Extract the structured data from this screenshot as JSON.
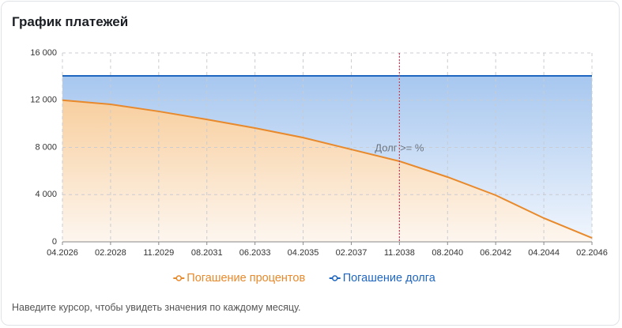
{
  "header": {
    "title": "График платежей"
  },
  "chart_data": {
    "type": "area-line",
    "categories": [
      "04.2026",
      "02.2028",
      "11.2029",
      "08.2031",
      "06.2033",
      "04.2035",
      "02.2037",
      "11.2038",
      "08.2040",
      "06.2042",
      "04.2044",
      "02.2046"
    ],
    "series": [
      {
        "name": "Погашение процентов",
        "color": "#e8892b",
        "fill_top": "#f8cf9f",
        "fill_bottom": "#fdf6ef",
        "values": [
          12000,
          11650,
          11050,
          10370,
          9640,
          8830,
          7830,
          6830,
          5490,
          3950,
          2010,
          330
        ]
      },
      {
        "name": "Погашение долга",
        "color": "#1f66c1",
        "fill_top": "#a7c7ef",
        "fill_bottom": "#f1f6fd",
        "values": [
          14060,
          14060,
          14060,
          14060,
          14060,
          14060,
          14060,
          14060,
          14060,
          14060,
          14060,
          14060
        ]
      }
    ],
    "ylim": [
      0,
      16000
    ],
    "yticks": [
      0,
      {
        "value": 4000,
        "label": "4 000"
      },
      {
        "value": 8000,
        "label": "8 000"
      },
      {
        "value": 12000,
        "label": "12 000"
      },
      {
        "value": 16000,
        "label": "16 000"
      }
    ],
    "grid": true,
    "legend": "bottom",
    "annotation": {
      "text": "Долг >= %",
      "at": 7,
      "color": "#c0405a"
    }
  },
  "footer": {
    "hint": "Наведите курсор, чтобы увидеть значения по каждому месяцу."
  }
}
